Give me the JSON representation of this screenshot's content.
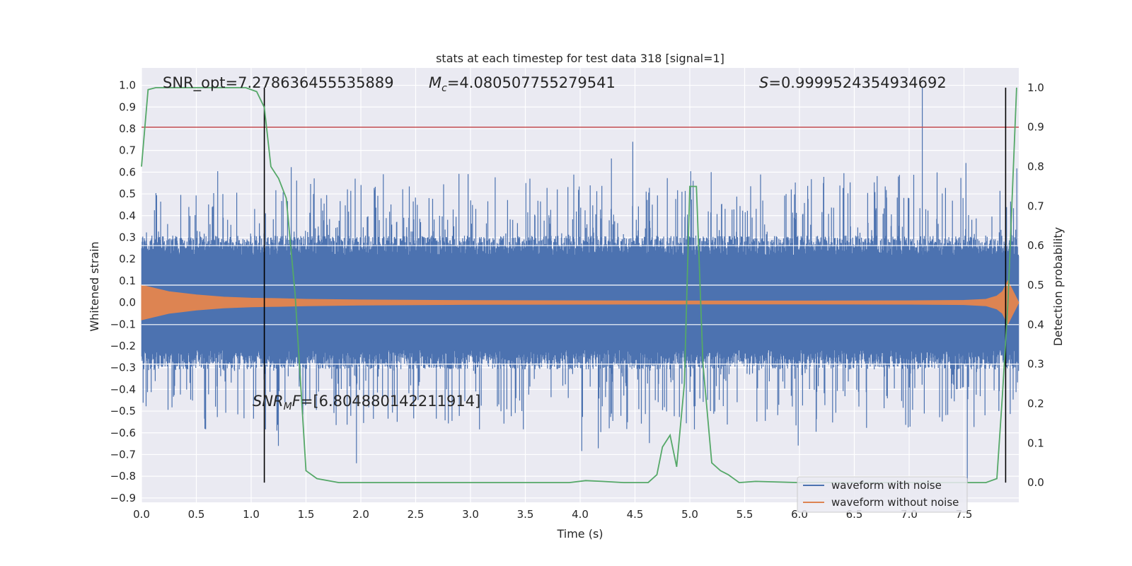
{
  "chart_data": {
    "type": "line",
    "title": "stats at each timestep for test data 318 [signal=1]",
    "xlabel": "Time (s)",
    "ylabel": "Whitened strain",
    "ylabel_right": "Detection probability",
    "xlim": [
      0.0,
      8.0
    ],
    "ylim": [
      -0.92,
      1.08
    ],
    "ylim_right": [
      -0.05,
      1.05
    ],
    "x_ticks": [
      "0.0",
      "0.5",
      "1.0",
      "1.5",
      "2.0",
      "2.5",
      "3.0",
      "3.5",
      "4.0",
      "4.5",
      "5.0",
      "5.5",
      "6.0",
      "6.5",
      "7.0",
      "7.5"
    ],
    "y_ticks": [
      "1.0",
      "0.9",
      "0.8",
      "0.7",
      "0.6",
      "0.5",
      "0.4",
      "0.3",
      "0.2",
      "0.1",
      "0.0",
      "−0.1",
      "−0.2",
      "−0.3",
      "−0.4",
      "−0.5",
      "−0.6",
      "−0.7",
      "−0.8",
      "−0.9"
    ],
    "y_right_ticks": [
      "1.0",
      "0.9",
      "0.8",
      "0.7",
      "0.6",
      "0.5",
      "0.4",
      "0.3",
      "0.2",
      "0.1",
      "0.0"
    ],
    "annotations": {
      "snr_opt": "SNR_opt=7.278636455535889",
      "mc_symbol": "M",
      "mc_sub": "c",
      "mc_value": "=4.080507755279541",
      "s_symbol": "S",
      "s_value": "=0.9999524354934692",
      "snr_mf_symbol": "SNR",
      "snr_mf_sub": "M",
      "snr_mf_f": "F",
      "snr_mf_value": "=[6.804880142211914]"
    },
    "legend": {
      "placement": "lower-right",
      "entries": [
        "waveform with noise",
        "waveform without noise"
      ]
    },
    "threshold_right": 0.9,
    "vlines_x": [
      1.12,
      7.88
    ],
    "noise_envelope": {
      "x": [
        0.0,
        0.5,
        1.0,
        1.5,
        2.0,
        2.5,
        3.0,
        3.5,
        4.0,
        4.5,
        5.0,
        5.5,
        6.0,
        6.5,
        7.0,
        7.5,
        7.8,
        8.0
      ],
      "typical_abs": 0.28
    },
    "notable_spikes": [
      {
        "x": 4.48,
        "y": 0.74
      },
      {
        "x": 7.12,
        "y": 0.99
      },
      {
        "x": 7.53,
        "y": -0.83
      },
      {
        "x": 1.96,
        "y": -0.74
      },
      {
        "x": 5.03,
        "y": 0.56
      }
    ],
    "signal_envelope": {
      "x": [
        0.0,
        0.25,
        0.5,
        0.75,
        1.0,
        1.25,
        1.5,
        2.0,
        3.0,
        4.0,
        5.0,
        6.0,
        7.0,
        7.5,
        7.7,
        7.8,
        7.85,
        7.9,
        8.0
      ],
      "amp": [
        0.08,
        0.05,
        0.035,
        0.025,
        0.02,
        0.018,
        0.015,
        0.012,
        0.009,
        0.008,
        0.007,
        0.007,
        0.008,
        0.01,
        0.015,
        0.03,
        0.05,
        0.1,
        0.0
      ]
    },
    "series": [
      {
        "name": "detection probability",
        "x": [
          0.0,
          0.06,
          0.13,
          0.2,
          0.5,
          0.8,
          0.95,
          1.05,
          1.12,
          1.18,
          1.25,
          1.32,
          1.4,
          1.5,
          1.6,
          1.8,
          2.5,
          3.5,
          3.9,
          4.05,
          4.2,
          4.4,
          4.62,
          4.7,
          4.75,
          4.82,
          4.88,
          4.95,
          5.0,
          5.06,
          5.12,
          5.2,
          5.28,
          5.35,
          5.45,
          5.6,
          6.0,
          7.0,
          7.7,
          7.8,
          7.85,
          7.9,
          7.98
        ],
        "y": [
          0.8,
          0.995,
          1.0,
          1.0,
          1.0,
          1.0,
          1.0,
          0.99,
          0.95,
          0.8,
          0.77,
          0.72,
          0.48,
          0.03,
          0.01,
          0.0,
          0.0,
          0.0,
          0.0,
          0.005,
          0.003,
          0.0,
          0.0,
          0.02,
          0.09,
          0.12,
          0.04,
          0.25,
          0.75,
          0.75,
          0.3,
          0.05,
          0.03,
          0.02,
          0.0,
          0.003,
          0.0,
          0.0,
          0.0,
          0.01,
          0.22,
          0.45,
          1.0
        ],
        "axis": "right"
      }
    ],
    "colors": {
      "noise": "#4c72b0",
      "signal": "#dd8452",
      "probability": "#55a868",
      "threshold": "#c44e52",
      "vline": "#000000",
      "plot_bg": "#eaeaf2",
      "grid": "#ffffff"
    }
  }
}
